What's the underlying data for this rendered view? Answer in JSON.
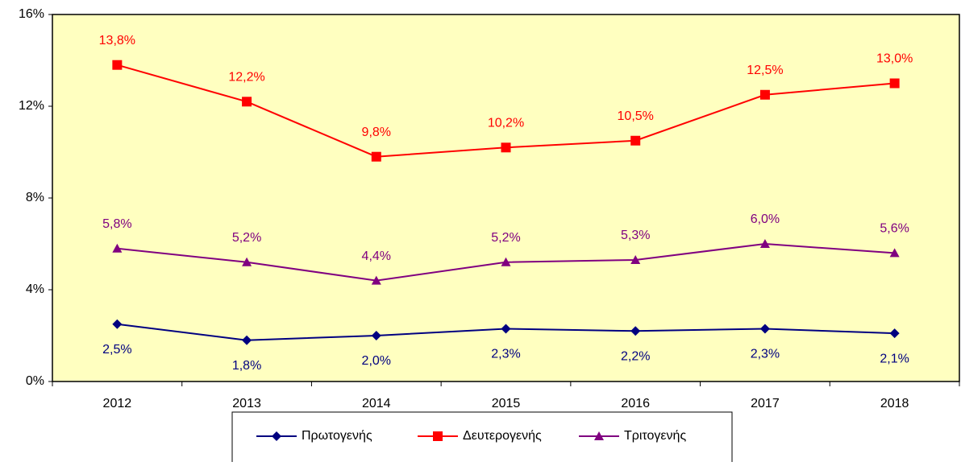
{
  "chart_data": {
    "type": "line",
    "categories": [
      "2012",
      "2013",
      "2014",
      "2015",
      "2016",
      "2017",
      "2018"
    ],
    "series": [
      {
        "name": "Πρωτογενής",
        "color": "#000080",
        "marker": "diamond",
        "label_position": "below",
        "values": [
          2.5,
          1.8,
          2.0,
          2.3,
          2.2,
          2.3,
          2.1
        ],
        "value_labels": [
          "2,5%",
          "1,8%",
          "2,0%",
          "2,3%",
          "2,2%",
          "2,3%",
          "2,1%"
        ]
      },
      {
        "name": "Δευτερογενής",
        "color": "#ff0000",
        "marker": "square",
        "label_position": "above",
        "values": [
          13.8,
          12.2,
          9.8,
          10.2,
          10.5,
          12.5,
          13.0
        ],
        "value_labels": [
          "13,8%",
          "12,2%",
          "9,8%",
          "10,2%",
          "10,5%",
          "12,5%",
          "13,0%"
        ]
      },
      {
        "name": "Τριτογενής",
        "color": "#800080",
        "marker": "triangle",
        "label_position": "above",
        "values": [
          5.8,
          5.2,
          4.4,
          5.2,
          5.3,
          6.0,
          5.6
        ],
        "value_labels": [
          "5,8%",
          "5,2%",
          "4,4%",
          "5,2%",
          "5,3%",
          "6,0%",
          "5,6%"
        ]
      }
    ],
    "ylim": [
      0,
      16
    ],
    "yticks": [
      {
        "value": 0,
        "label": "0%"
      },
      {
        "value": 4,
        "label": "4%"
      },
      {
        "value": 8,
        "label": "8%"
      },
      {
        "value": 12,
        "label": "12%"
      },
      {
        "value": 16,
        "label": "16%"
      }
    ],
    "legend": "bottom"
  }
}
